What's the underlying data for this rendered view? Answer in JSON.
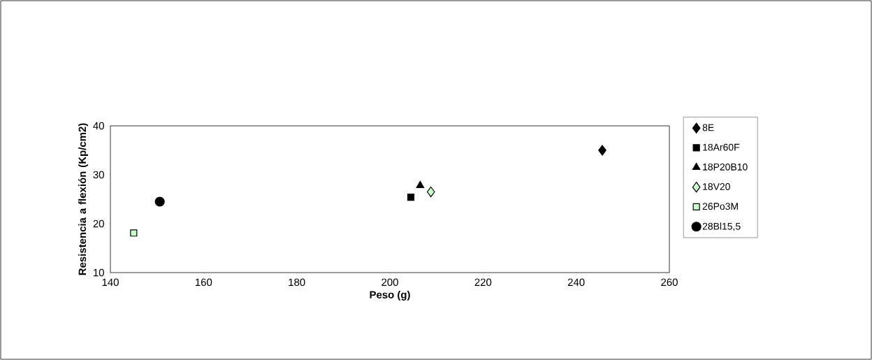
{
  "chart_data": {
    "type": "scatter",
    "xlabel": "Peso (g)",
    "ylabel": "Resistencia a flexión (Kp/cm2)",
    "xlim": [
      140,
      260
    ],
    "xticks": [
      140,
      160,
      180,
      200,
      220,
      240,
      260
    ],
    "ylim": [
      10,
      40
    ],
    "yticks": [
      10,
      20,
      30,
      40
    ],
    "grid": false,
    "legend": "right",
    "series": [
      {
        "name": "8E",
        "color": "#000000",
        "marker": "diamond",
        "x": [
          245.6
        ],
        "values": [
          35.0
        ]
      },
      {
        "name": "18Ar60F",
        "color": "#000000",
        "marker": "square",
        "x": [
          204.5
        ],
        "values": [
          25.4
        ]
      },
      {
        "name": "18P20B10",
        "color": "#000000",
        "marker": "triangle",
        "x": [
          206.5
        ],
        "values": [
          27.8
        ]
      },
      {
        "name": "18V20",
        "color": "#ccffcc",
        "marker": "diamond",
        "x": [
          208.8
        ],
        "values": [
          26.5
        ]
      },
      {
        "name": "26Po3M",
        "color": "#ccffcc",
        "marker": "square",
        "x": [
          145.0
        ],
        "values": [
          18.1
        ]
      },
      {
        "name": "28Bl15,5",
        "color": "#000000",
        "marker": "circle",
        "x": [
          150.6
        ],
        "values": [
          24.5
        ]
      }
    ]
  }
}
